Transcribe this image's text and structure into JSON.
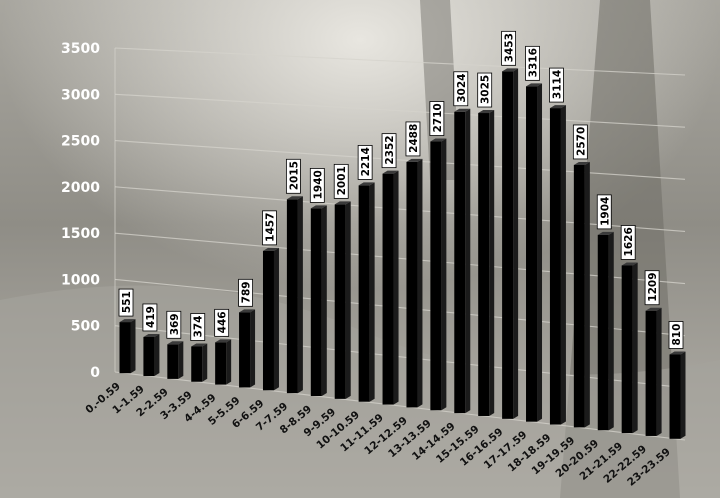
{
  "chart_data": {
    "type": "bar",
    "categories": [
      "0.-0.59",
      "1-1.59",
      "2-2.59",
      "3-3.59",
      "4-4.59",
      "5-5.59",
      "6-6.59",
      "7-7.59",
      "8-8.59",
      "9-9.59",
      "10-10.59",
      "11-11.59",
      "12-12.59",
      "13-13.59",
      "14-14.59",
      "15-15.59",
      "16-16.59",
      "17-17.59",
      "18-18.59",
      "19-19.59",
      "20-20.59",
      "21-21.59",
      "22-22.59",
      "23-23.59"
    ],
    "values": [
      551,
      419,
      369,
      374,
      446,
      789,
      1457,
      2015,
      1940,
      2001,
      2214,
      2352,
      2488,
      2710,
      3024,
      3025,
      3453,
      3316,
      3114,
      2570,
      1904,
      1626,
      1209,
      810
    ],
    "yticks": [
      "0",
      "500",
      "1000",
      "1500",
      "2000",
      "2500",
      "3000",
      "3500"
    ],
    "ylim": [
      0,
      3500
    ],
    "grid": true,
    "legend": "none",
    "title": "",
    "xlabel": "",
    "ylabel": ""
  },
  "colors": {
    "bar": "#000000",
    "background": "#8e8c85",
    "grid": "#d6d4cd",
    "label_box": "#ffffff"
  }
}
